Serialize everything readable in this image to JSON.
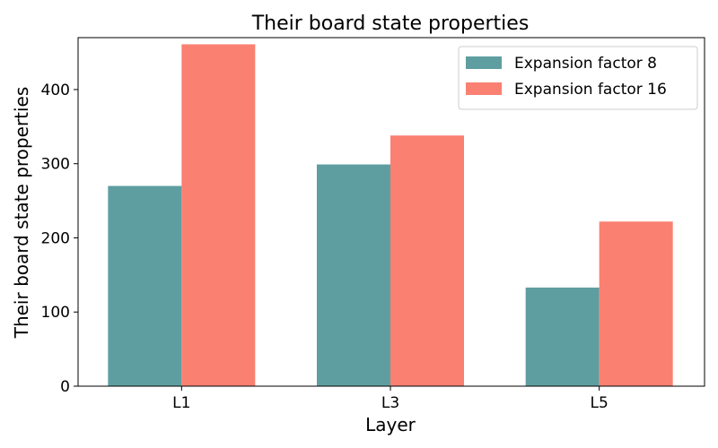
{
  "chart_data": {
    "type": "bar",
    "title": "Their board state properties",
    "xlabel": "Layer",
    "ylabel": "Their board state properties",
    "categories": [
      "L1",
      "L3",
      "L5"
    ],
    "series": [
      {
        "name": "Expansion factor 8",
        "values": [
          270,
          299,
          133
        ],
        "color": "#5F9EA0"
      },
      {
        "name": "Expansion factor 16",
        "values": [
          461,
          338,
          222
        ],
        "color": "#FA8072"
      }
    ],
    "ylim": [
      0,
      470
    ],
    "yticks": [
      0,
      100,
      200,
      300,
      400
    ],
    "grid": false,
    "legend_position": "top-right"
  }
}
